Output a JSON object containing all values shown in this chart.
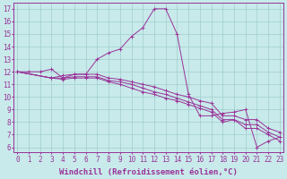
{
  "xlabel": "Windchill (Refroidissement éolien,°C)",
  "bg_color": "#c8eaea",
  "grid_color": "#a0cccc",
  "line_color": "#993399",
  "spine_color": "#993399",
  "x_ticks": [
    0,
    1,
    2,
    3,
    4,
    5,
    6,
    7,
    8,
    9,
    10,
    11,
    12,
    13,
    14,
    15,
    16,
    17,
    18,
    19,
    20,
    21,
    22,
    23
  ],
  "y_ticks": [
    6,
    7,
    8,
    9,
    10,
    11,
    12,
    13,
    14,
    15,
    16,
    17
  ],
  "xlim": [
    -0.3,
    23.3
  ],
  "ylim": [
    5.6,
    17.5
  ],
  "lines": [
    {
      "x": [
        0,
        1,
        2,
        3,
        4,
        5,
        6,
        7,
        8,
        9,
        10,
        11,
        12,
        13,
        14,
        15,
        16,
        17,
        18,
        19,
        20,
        21,
        22,
        23
      ],
      "y": [
        12,
        12,
        12,
        12.2,
        11.5,
        11.8,
        11.8,
        13.0,
        13.5,
        13.8,
        14.8,
        15.5,
        17.0,
        17.0,
        15.0,
        10.2,
        8.5,
        8.5,
        8.7,
        8.8,
        9.0,
        6.0,
        6.5,
        6.8
      ]
    },
    {
      "x": [
        0,
        3,
        4,
        5,
        6,
        7,
        8,
        9,
        10,
        11,
        12,
        13,
        14,
        15,
        16,
        17,
        18,
        19,
        20,
        21,
        22,
        23
      ],
      "y": [
        12,
        11.5,
        11.7,
        11.8,
        11.8,
        11.8,
        11.5,
        11.4,
        11.2,
        11.0,
        10.8,
        10.5,
        10.2,
        10.0,
        9.7,
        9.5,
        8.5,
        8.5,
        8.2,
        8.2,
        7.5,
        7.2
      ]
    },
    {
      "x": [
        0,
        3,
        4,
        5,
        6,
        7,
        8,
        9,
        10,
        11,
        12,
        13,
        14,
        15,
        16,
        17,
        18,
        19,
        20,
        21,
        22,
        23
      ],
      "y": [
        12,
        11.5,
        11.5,
        11.6,
        11.6,
        11.6,
        11.3,
        11.2,
        11.0,
        10.7,
        10.4,
        10.2,
        9.9,
        9.6,
        9.3,
        9.0,
        8.2,
        8.2,
        7.8,
        7.8,
        7.2,
        6.8
      ]
    },
    {
      "x": [
        0,
        3,
        4,
        5,
        6,
        7,
        8,
        9,
        10,
        11,
        12,
        13,
        14,
        15,
        16,
        17,
        18,
        19,
        20,
        21,
        22,
        23
      ],
      "y": [
        12,
        11.5,
        11.4,
        11.5,
        11.5,
        11.5,
        11.2,
        11.0,
        10.7,
        10.4,
        10.2,
        9.9,
        9.7,
        9.4,
        9.1,
        8.8,
        8.0,
        8.2,
        7.5,
        7.5,
        7.0,
        6.5
      ]
    }
  ],
  "tick_fontsize": 5.5,
  "xlabel_fontsize": 6.5,
  "marker_size": 2.5,
  "linewidth": 0.7
}
